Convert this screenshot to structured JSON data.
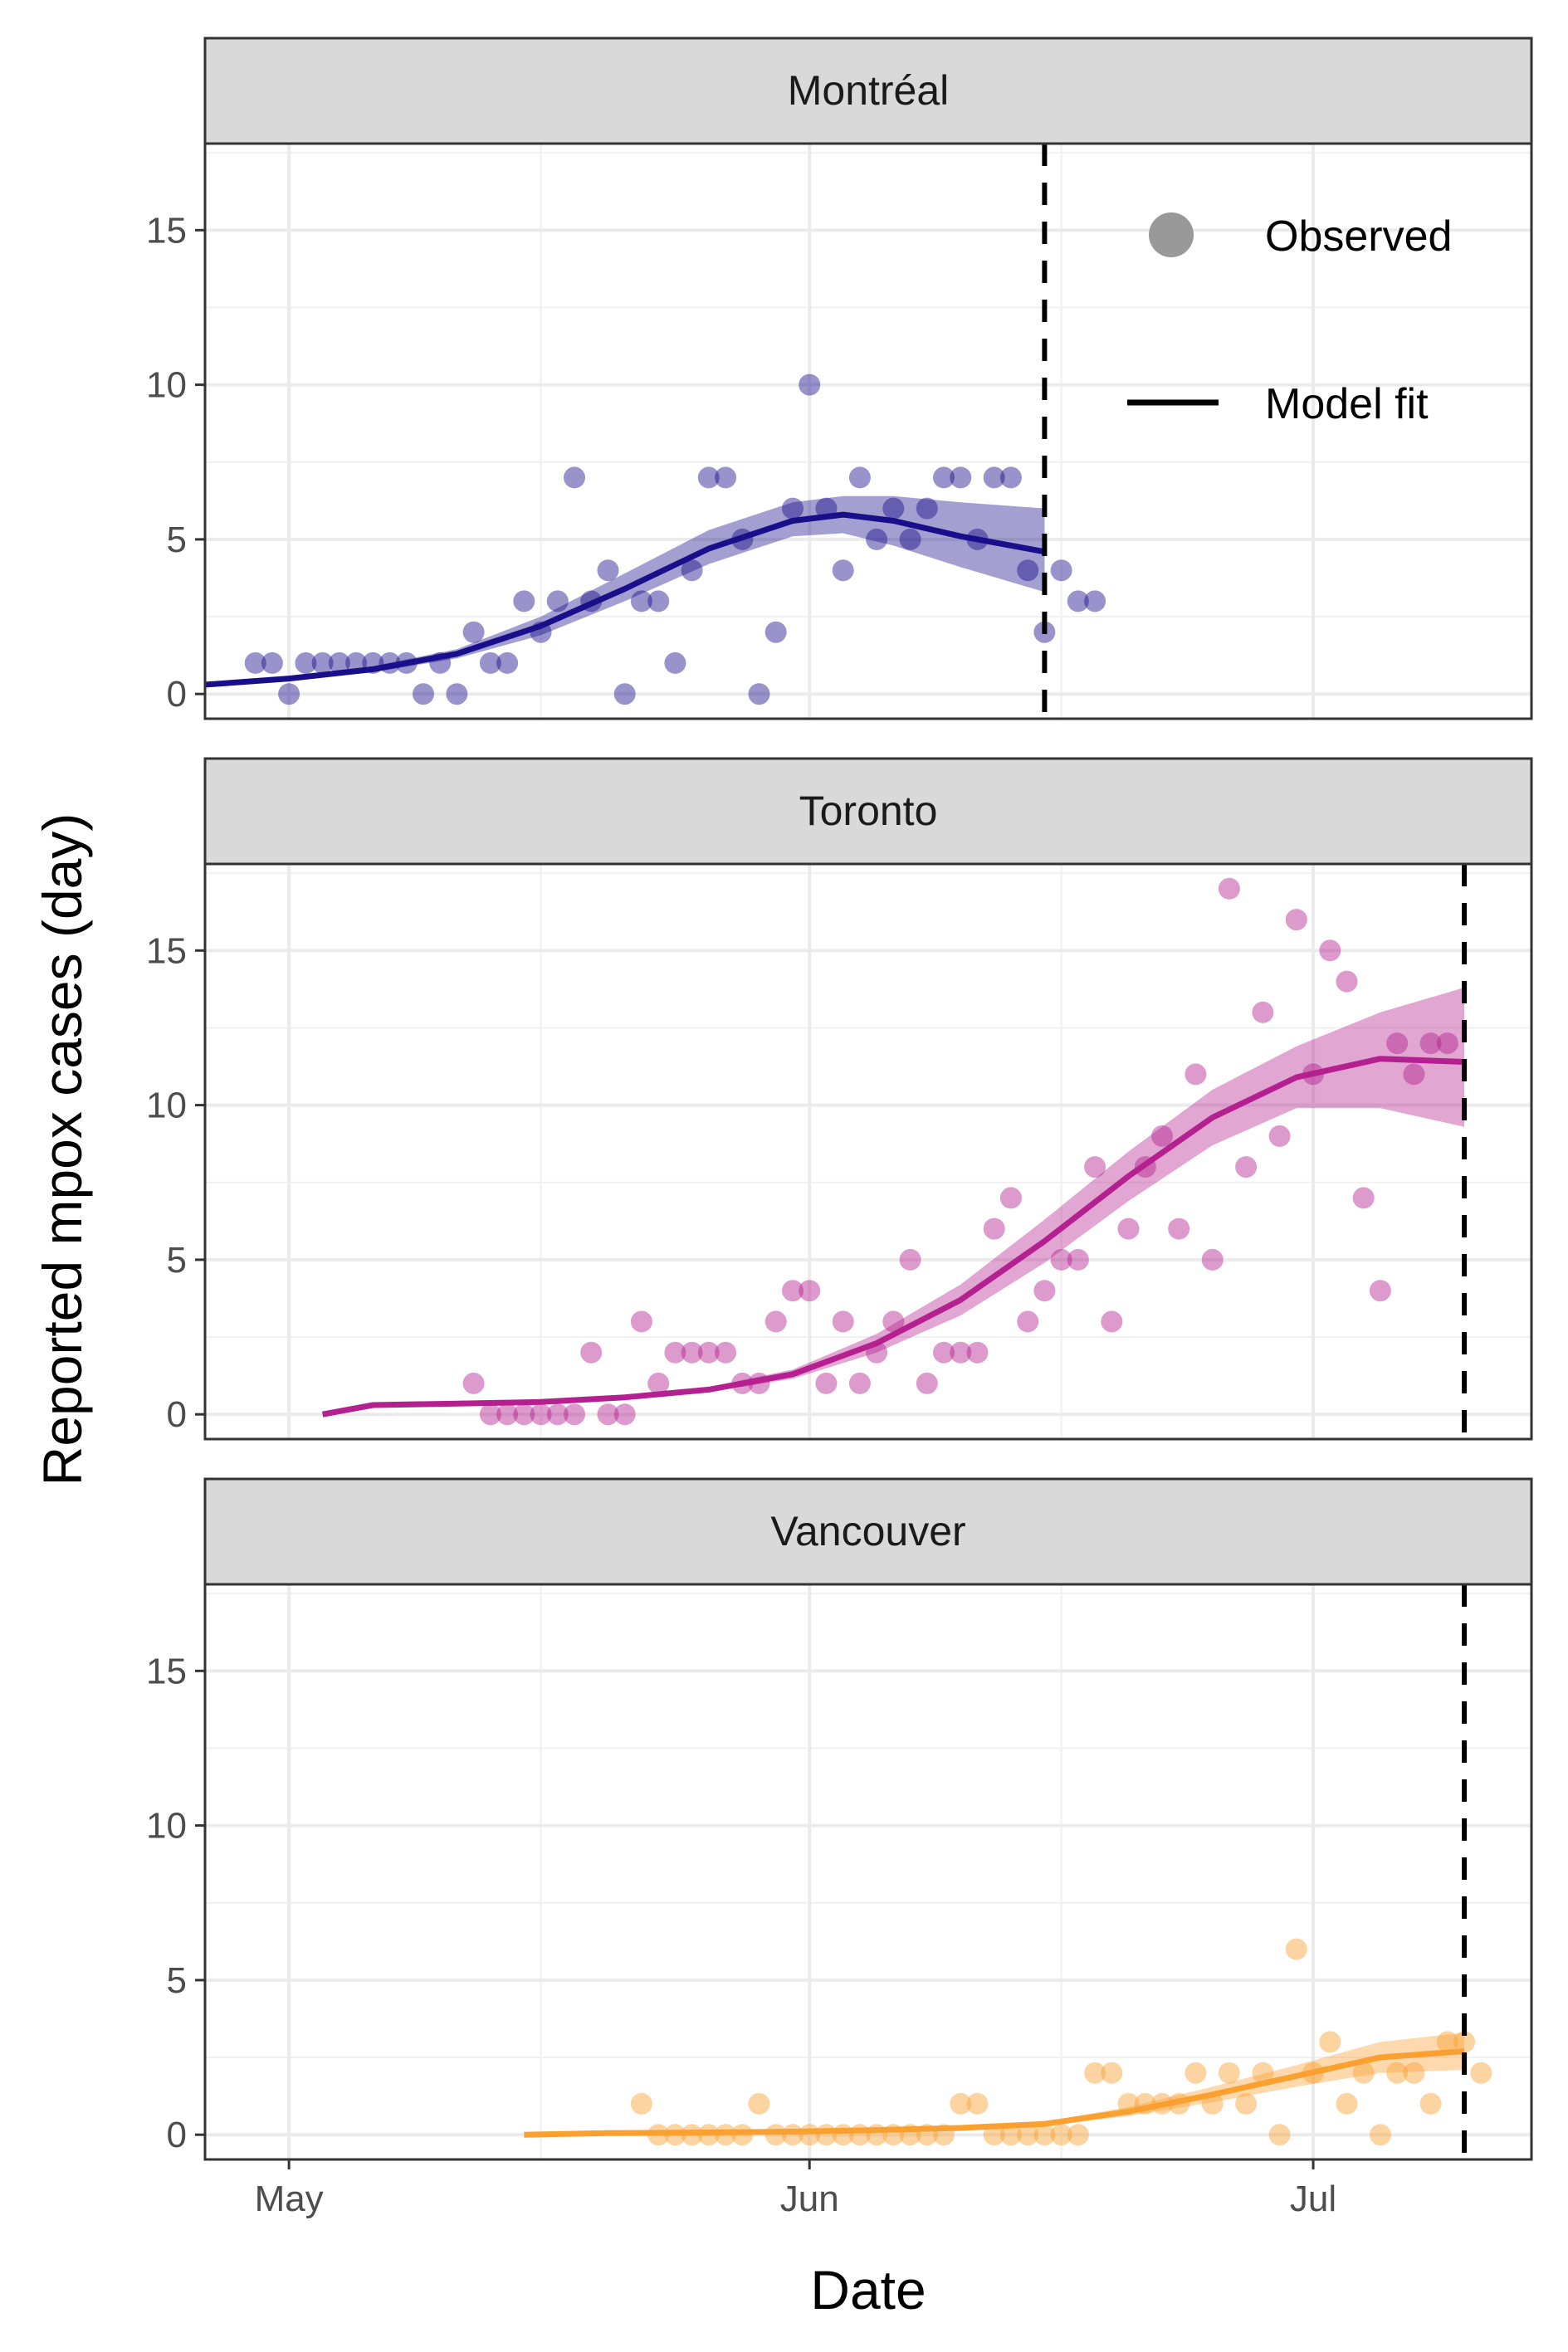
{
  "chart_data": {
    "type": "scatter",
    "xlabel": "Date",
    "ylabel": "Reported mpox cases (day)",
    "ylim": [
      -0.8,
      17.8
    ],
    "xlim": [
      "2022-04-26",
      "2022-07-14"
    ],
    "yticks": [
      0,
      5,
      10,
      15
    ],
    "xticks": [
      {
        "date": "2022-05-01",
        "label": "May"
      },
      {
        "date": "2022-06-01",
        "label": "Jun"
      },
      {
        "date": "2022-07-01",
        "label": "Jul"
      }
    ],
    "grid": true,
    "legend": {
      "position": "top-right",
      "items": [
        {
          "label": "Observed",
          "symbol": "point"
        },
        {
          "label": "Model fit",
          "symbol": "line"
        }
      ]
    },
    "panels": [
      {
        "name": "Montréal",
        "color": "#1a0f8a",
        "cutoff": "2022-06-15",
        "observed": [
          [
            "2022-04-29",
            1
          ],
          [
            "2022-04-30",
            1
          ],
          [
            "2022-05-01",
            0
          ],
          [
            "2022-05-02",
            1
          ],
          [
            "2022-05-03",
            1
          ],
          [
            "2022-05-04",
            1
          ],
          [
            "2022-05-05",
            1
          ],
          [
            "2022-05-06",
            1
          ],
          [
            "2022-05-07",
            1
          ],
          [
            "2022-05-08",
            1
          ],
          [
            "2022-05-09",
            0
          ],
          [
            "2022-05-10",
            1
          ],
          [
            "2022-05-11",
            0
          ],
          [
            "2022-05-12",
            2
          ],
          [
            "2022-05-13",
            1
          ],
          [
            "2022-05-14",
            1
          ],
          [
            "2022-05-15",
            3
          ],
          [
            "2022-05-16",
            2
          ],
          [
            "2022-05-17",
            3
          ],
          [
            "2022-05-18",
            7
          ],
          [
            "2022-05-19",
            3
          ],
          [
            "2022-05-20",
            4
          ],
          [
            "2022-05-21",
            0
          ],
          [
            "2022-05-22",
            3
          ],
          [
            "2022-05-23",
            3
          ],
          [
            "2022-05-24",
            1
          ],
          [
            "2022-05-25",
            4
          ],
          [
            "2022-05-26",
            7
          ],
          [
            "2022-05-27",
            7
          ],
          [
            "2022-05-28",
            5
          ],
          [
            "2022-05-29",
            0
          ],
          [
            "2022-05-30",
            2
          ],
          [
            "2022-05-31",
            6
          ],
          [
            "2022-06-01",
            10
          ],
          [
            "2022-06-02",
            6
          ],
          [
            "2022-06-03",
            4
          ],
          [
            "2022-06-04",
            7
          ],
          [
            "2022-06-05",
            5
          ],
          [
            "2022-06-06",
            6
          ],
          [
            "2022-06-07",
            5
          ],
          [
            "2022-06-08",
            6
          ],
          [
            "2022-06-09",
            7
          ],
          [
            "2022-06-10",
            7
          ],
          [
            "2022-06-11",
            5
          ],
          [
            "2022-06-12",
            7
          ],
          [
            "2022-06-13",
            7
          ],
          [
            "2022-06-14",
            4
          ],
          [
            "2022-06-15",
            2
          ],
          [
            "2022-06-16",
            4
          ],
          [
            "2022-06-17",
            3
          ],
          [
            "2022-06-18",
            3
          ]
        ],
        "fit": [
          [
            "2022-04-26",
            0.3
          ],
          [
            "2022-05-01",
            0.5
          ],
          [
            "2022-05-06",
            0.8
          ],
          [
            "2022-05-11",
            1.3
          ],
          [
            "2022-05-16",
            2.2
          ],
          [
            "2022-05-21",
            3.4
          ],
          [
            "2022-05-26",
            4.7
          ],
          [
            "2022-05-31",
            5.6
          ],
          [
            "2022-06-03",
            5.8
          ],
          [
            "2022-06-06",
            5.6
          ],
          [
            "2022-06-10",
            5.1
          ],
          [
            "2022-06-15",
            4.6
          ]
        ],
        "fit_lower": [
          [
            "2022-04-26",
            0.25
          ],
          [
            "2022-05-01",
            0.45
          ],
          [
            "2022-05-06",
            0.7
          ],
          [
            "2022-05-11",
            1.15
          ],
          [
            "2022-05-16",
            1.9
          ],
          [
            "2022-05-21",
            3.0
          ],
          [
            "2022-05-26",
            4.2
          ],
          [
            "2022-05-31",
            5.1
          ],
          [
            "2022-06-03",
            5.2
          ],
          [
            "2022-06-06",
            4.8
          ],
          [
            "2022-06-10",
            4.1
          ],
          [
            "2022-06-15",
            3.3
          ]
        ],
        "fit_upper": [
          [
            "2022-04-26",
            0.35
          ],
          [
            "2022-05-01",
            0.55
          ],
          [
            "2022-05-06",
            0.9
          ],
          [
            "2022-05-11",
            1.45
          ],
          [
            "2022-05-16",
            2.5
          ],
          [
            "2022-05-21",
            3.9
          ],
          [
            "2022-05-26",
            5.3
          ],
          [
            "2022-05-31",
            6.2
          ],
          [
            "2022-06-03",
            6.4
          ],
          [
            "2022-06-06",
            6.4
          ],
          [
            "2022-06-10",
            6.2
          ],
          [
            "2022-06-15",
            6.0
          ]
        ]
      },
      {
        "name": "Toronto",
        "color": "#b4208f",
        "cutoff": "2022-07-10",
        "observed": [
          [
            "2022-05-12",
            1
          ],
          [
            "2022-05-13",
            0
          ],
          [
            "2022-05-14",
            0
          ],
          [
            "2022-05-15",
            0
          ],
          [
            "2022-05-16",
            0
          ],
          [
            "2022-05-17",
            0
          ],
          [
            "2022-05-18",
            0
          ],
          [
            "2022-05-19",
            2
          ],
          [
            "2022-05-20",
            0
          ],
          [
            "2022-05-21",
            0
          ],
          [
            "2022-05-22",
            3
          ],
          [
            "2022-05-23",
            1
          ],
          [
            "2022-05-24",
            2
          ],
          [
            "2022-05-25",
            2
          ],
          [
            "2022-05-26",
            2
          ],
          [
            "2022-05-27",
            2
          ],
          [
            "2022-05-28",
            1
          ],
          [
            "2022-05-29",
            1
          ],
          [
            "2022-05-30",
            3
          ],
          [
            "2022-05-31",
            4
          ],
          [
            "2022-06-01",
            4
          ],
          [
            "2022-06-02",
            1
          ],
          [
            "2022-06-03",
            3
          ],
          [
            "2022-06-04",
            1
          ],
          [
            "2022-06-05",
            2
          ],
          [
            "2022-06-06",
            3
          ],
          [
            "2022-06-07",
            5
          ],
          [
            "2022-06-08",
            1
          ],
          [
            "2022-06-09",
            2
          ],
          [
            "2022-06-10",
            2
          ],
          [
            "2022-06-11",
            2
          ],
          [
            "2022-06-12",
            6
          ],
          [
            "2022-06-13",
            7
          ],
          [
            "2022-06-14",
            3
          ],
          [
            "2022-06-15",
            4
          ],
          [
            "2022-06-16",
            5
          ],
          [
            "2022-06-17",
            5
          ],
          [
            "2022-06-18",
            8
          ],
          [
            "2022-06-19",
            3
          ],
          [
            "2022-06-20",
            6
          ],
          [
            "2022-06-21",
            8
          ],
          [
            "2022-06-22",
            9
          ],
          [
            "2022-06-23",
            6
          ],
          [
            "2022-06-24",
            11
          ],
          [
            "2022-06-25",
            5
          ],
          [
            "2022-06-26",
            17
          ],
          [
            "2022-06-27",
            8
          ],
          [
            "2022-06-28",
            13
          ],
          [
            "2022-06-29",
            9
          ],
          [
            "2022-06-30",
            16
          ],
          [
            "2022-07-01",
            11
          ],
          [
            "2022-07-02",
            15
          ],
          [
            "2022-07-03",
            14
          ],
          [
            "2022-07-04",
            7
          ],
          [
            "2022-07-05",
            4
          ],
          [
            "2022-07-06",
            12
          ],
          [
            "2022-07-07",
            11
          ],
          [
            "2022-07-08",
            12
          ],
          [
            "2022-07-09",
            12
          ]
        ],
        "fit": [
          [
            "2022-05-03",
            0.0
          ],
          [
            "2022-05-06",
            0.3
          ],
          [
            "2022-05-11",
            0.35
          ],
          [
            "2022-05-16",
            0.4
          ],
          [
            "2022-05-21",
            0.55
          ],
          [
            "2022-05-26",
            0.8
          ],
          [
            "2022-05-31",
            1.3
          ],
          [
            "2022-06-05",
            2.3
          ],
          [
            "2022-06-10",
            3.7
          ],
          [
            "2022-06-15",
            5.6
          ],
          [
            "2022-06-20",
            7.7
          ],
          [
            "2022-06-25",
            9.6
          ],
          [
            "2022-06-30",
            10.9
          ],
          [
            "2022-07-05",
            11.5
          ],
          [
            "2022-07-10",
            11.4
          ]
        ],
        "fit_lower": [
          [
            "2022-05-03",
            0.0
          ],
          [
            "2022-05-06",
            0.28
          ],
          [
            "2022-05-11",
            0.32
          ],
          [
            "2022-05-16",
            0.36
          ],
          [
            "2022-05-21",
            0.5
          ],
          [
            "2022-05-26",
            0.72
          ],
          [
            "2022-05-31",
            1.15
          ],
          [
            "2022-06-05",
            2.0
          ],
          [
            "2022-06-10",
            3.2
          ],
          [
            "2022-06-15",
            4.9
          ],
          [
            "2022-06-20",
            6.9
          ],
          [
            "2022-06-25",
            8.7
          ],
          [
            "2022-06-30",
            9.9
          ],
          [
            "2022-07-05",
            9.9
          ],
          [
            "2022-07-10",
            9.3
          ]
        ],
        "fit_upper": [
          [
            "2022-05-03",
            0.0
          ],
          [
            "2022-05-06",
            0.32
          ],
          [
            "2022-05-11",
            0.38
          ],
          [
            "2022-05-16",
            0.44
          ],
          [
            "2022-05-21",
            0.6
          ],
          [
            "2022-05-26",
            0.88
          ],
          [
            "2022-05-31",
            1.45
          ],
          [
            "2022-06-05",
            2.6
          ],
          [
            "2022-06-10",
            4.2
          ],
          [
            "2022-06-15",
            6.3
          ],
          [
            "2022-06-20",
            8.5
          ],
          [
            "2022-06-25",
            10.5
          ],
          [
            "2022-06-30",
            11.9
          ],
          [
            "2022-07-05",
            13.0
          ],
          [
            "2022-07-10",
            13.8
          ]
        ]
      },
      {
        "name": "Vancouver",
        "color": "#f9a031",
        "cutoff": "2022-07-10",
        "observed": [
          [
            "2022-05-22",
            1
          ],
          [
            "2022-05-23",
            0
          ],
          [
            "2022-05-24",
            0
          ],
          [
            "2022-05-25",
            0
          ],
          [
            "2022-05-26",
            0
          ],
          [
            "2022-05-27",
            0
          ],
          [
            "2022-05-28",
            0
          ],
          [
            "2022-05-29",
            1
          ],
          [
            "2022-05-30",
            0
          ],
          [
            "2022-05-31",
            0
          ],
          [
            "2022-06-01",
            0
          ],
          [
            "2022-06-02",
            0
          ],
          [
            "2022-06-03",
            0
          ],
          [
            "2022-06-04",
            0
          ],
          [
            "2022-06-05",
            0
          ],
          [
            "2022-06-06",
            0
          ],
          [
            "2022-06-07",
            0
          ],
          [
            "2022-06-08",
            0
          ],
          [
            "2022-06-09",
            0
          ],
          [
            "2022-06-10",
            1
          ],
          [
            "2022-06-11",
            1
          ],
          [
            "2022-06-12",
            0
          ],
          [
            "2022-06-13",
            0
          ],
          [
            "2022-06-14",
            0
          ],
          [
            "2022-06-15",
            0
          ],
          [
            "2022-06-16",
            0
          ],
          [
            "2022-06-17",
            0
          ],
          [
            "2022-06-18",
            2
          ],
          [
            "2022-06-19",
            2
          ],
          [
            "2022-06-20",
            1
          ],
          [
            "2022-06-21",
            1
          ],
          [
            "2022-06-22",
            1
          ],
          [
            "2022-06-23",
            1
          ],
          [
            "2022-06-24",
            2
          ],
          [
            "2022-06-25",
            1
          ],
          [
            "2022-06-26",
            2
          ],
          [
            "2022-06-27",
            1
          ],
          [
            "2022-06-28",
            2
          ],
          [
            "2022-06-29",
            0
          ],
          [
            "2022-06-30",
            6
          ],
          [
            "2022-07-01",
            2
          ],
          [
            "2022-07-02",
            3
          ],
          [
            "2022-07-03",
            1
          ],
          [
            "2022-07-04",
            2
          ],
          [
            "2022-07-05",
            0
          ],
          [
            "2022-07-06",
            2
          ],
          [
            "2022-07-07",
            2
          ],
          [
            "2022-07-08",
            1
          ],
          [
            "2022-07-09",
            3
          ],
          [
            "2022-07-10",
            3
          ],
          [
            "2022-07-11",
            2
          ]
        ],
        "fit": [
          [
            "2022-05-15",
            0.0
          ],
          [
            "2022-05-20",
            0.05
          ],
          [
            "2022-05-25",
            0.07
          ],
          [
            "2022-05-31",
            0.1
          ],
          [
            "2022-06-05",
            0.15
          ],
          [
            "2022-06-10",
            0.22
          ],
          [
            "2022-06-15",
            0.35
          ],
          [
            "2022-06-20",
            0.75
          ],
          [
            "2022-06-25",
            1.3
          ],
          [
            "2022-06-30",
            1.9
          ],
          [
            "2022-07-05",
            2.5
          ],
          [
            "2022-07-10",
            2.7
          ]
        ],
        "fit_lower": [
          [
            "2022-05-15",
            0.0
          ],
          [
            "2022-05-20",
            0.04
          ],
          [
            "2022-05-25",
            0.06
          ],
          [
            "2022-05-31",
            0.08
          ],
          [
            "2022-06-05",
            0.12
          ],
          [
            "2022-06-10",
            0.18
          ],
          [
            "2022-06-15",
            0.28
          ],
          [
            "2022-06-20",
            0.6
          ],
          [
            "2022-06-25",
            1.05
          ],
          [
            "2022-06-30",
            1.55
          ],
          [
            "2022-07-05",
            2.0
          ],
          [
            "2022-07-10",
            2.1
          ]
        ],
        "fit_upper": [
          [
            "2022-05-15",
            0.0
          ],
          [
            "2022-05-20",
            0.06
          ],
          [
            "2022-05-25",
            0.08
          ],
          [
            "2022-05-31",
            0.12
          ],
          [
            "2022-06-05",
            0.18
          ],
          [
            "2022-06-10",
            0.26
          ],
          [
            "2022-06-15",
            0.42
          ],
          [
            "2022-06-20",
            0.9
          ],
          [
            "2022-06-25",
            1.55
          ],
          [
            "2022-06-30",
            2.25
          ],
          [
            "2022-07-05",
            3.0
          ],
          [
            "2022-07-10",
            3.3
          ]
        ]
      }
    ]
  }
}
